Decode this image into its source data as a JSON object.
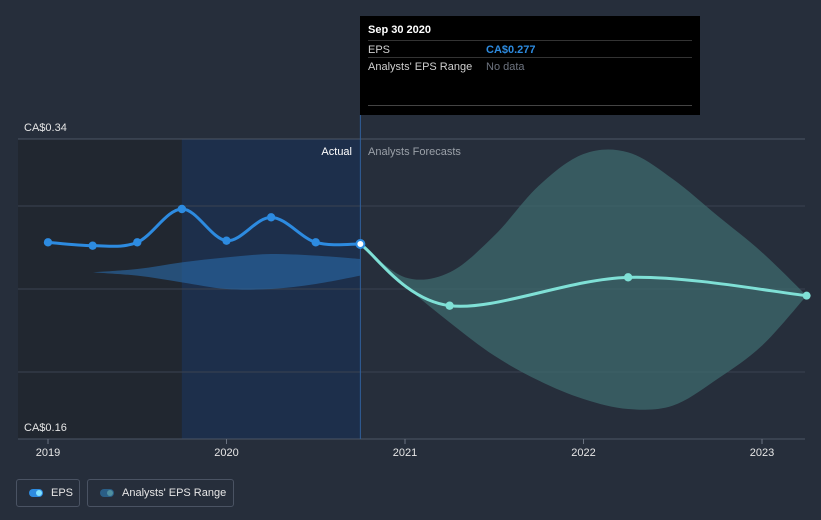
{
  "tooltip": {
    "date": "Sep 30 2020",
    "rows": [
      {
        "label": "EPS",
        "value": "CA$0.277",
        "color": "#2d8be0"
      },
      {
        "label": "Analysts' EPS Range",
        "value": "No data",
        "color": "#6e7480"
      }
    ]
  },
  "legend": {
    "eps_label": "EPS",
    "range_label": "Analysts' EPS Range"
  },
  "regions": {
    "actual_label": "Actual",
    "forecast_label": "Analysts Forecasts"
  },
  "colors": {
    "background": "#262e3b",
    "actual_line": "#2d8be0",
    "forecast_line": "#7fe0d6",
    "actual_band": "#2a6aa8",
    "forecast_band": "#3e6a6e",
    "actual_shade": "#1d2f4b",
    "past_shade": "#212730"
  },
  "chart_data": {
    "type": "line",
    "y_axis": {
      "min": 0.16,
      "max": 0.34,
      "tick_labels": [
        "CA$0.34",
        "CA$0.16"
      ]
    },
    "x_ticks": [
      {
        "label": "2019",
        "x": 2019.0
      },
      {
        "label": "2020",
        "x": 2020.0
      },
      {
        "label": "2021",
        "x": 2021.0
      },
      {
        "label": "2022",
        "x": 2022.0
      },
      {
        "label": "2023",
        "x": 2023.0
      }
    ],
    "x_range": [
      2018.92,
      2023.25
    ],
    "divider_x": 2020.75,
    "highlight_start_x": 2019.75,
    "series": [
      {
        "name": "EPS",
        "segment": "actual",
        "x": [
          2019.0,
          2019.25,
          2019.5,
          2019.75,
          2020.0,
          2020.25,
          2020.5,
          2020.75
        ],
        "y": [
          0.278,
          0.276,
          0.278,
          0.298,
          0.279,
          0.293,
          0.278,
          0.277
        ]
      },
      {
        "name": "EPS",
        "segment": "forecast",
        "x": [
          2020.75,
          2021.25,
          2022.25,
          2023.25
        ],
        "y": [
          0.277,
          0.24,
          0.257,
          0.246
        ]
      }
    ],
    "ranges": [
      {
        "name": "Analysts' EPS Range",
        "segment": "past",
        "x": [
          2019.25,
          2019.5,
          2019.75,
          2020.0,
          2020.25,
          2020.5,
          2020.75
        ],
        "low": [
          0.26,
          0.258,
          0.254,
          0.25,
          0.25,
          0.253,
          0.258
        ],
        "high": [
          0.26,
          0.262,
          0.266,
          0.269,
          0.271,
          0.27,
          0.268
        ]
      },
      {
        "name": "Analysts' EPS Range",
        "segment": "forecast",
        "x": [
          2020.75,
          2021.0,
          2021.25,
          2021.5,
          2021.75,
          2022.0,
          2022.25,
          2022.5,
          2022.75,
          2023.0,
          2023.25
        ],
        "low": [
          0.277,
          0.252,
          0.23,
          0.21,
          0.195,
          0.184,
          0.178,
          0.18,
          0.196,
          0.216,
          0.246
        ],
        "high": [
          0.277,
          0.257,
          0.26,
          0.282,
          0.312,
          0.331,
          0.332,
          0.316,
          0.294,
          0.272,
          0.246
        ]
      }
    ],
    "grid": true,
    "legend_position": "bottom-left"
  }
}
